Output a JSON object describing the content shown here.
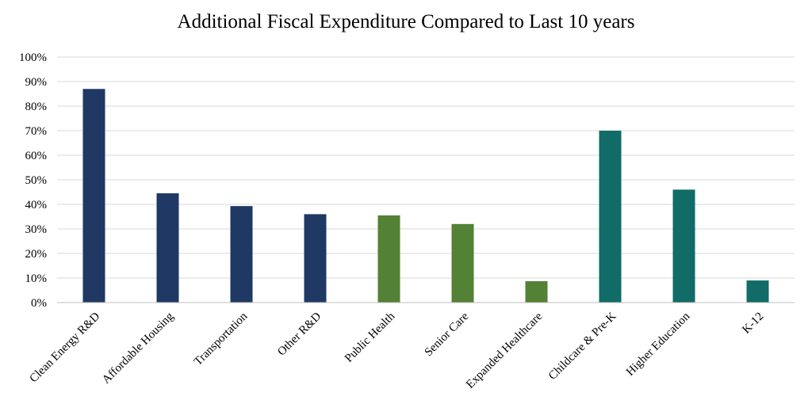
{
  "chart_data": {
    "type": "bar",
    "title": "Additional Fiscal Expenditure Compared to Last 10 years",
    "xlabel": "",
    "ylabel": "",
    "ylim": [
      0,
      100
    ],
    "yticks": [
      "0%",
      "10%",
      "20%",
      "30%",
      "40%",
      "50%",
      "60%",
      "70%",
      "80%",
      "90%",
      "100%"
    ],
    "categories": [
      "Clean Energy R&D",
      "Affordable Housing",
      "Transportation",
      "Other R&D",
      "Public Health",
      "Senior Care",
      "Expanded Healthcare",
      "Childcare & Pre-K",
      "Higher Education",
      "K-12"
    ],
    "values": [
      87,
      44.5,
      39.3,
      36,
      35.5,
      32,
      8.7,
      70,
      46,
      9
    ],
    "colors": [
      "#1f3864",
      "#1f3864",
      "#1f3864",
      "#1f3864",
      "#538135",
      "#538135",
      "#538135",
      "#116b66",
      "#116b66",
      "#116b66"
    ],
    "grid": true,
    "legend": "none"
  }
}
